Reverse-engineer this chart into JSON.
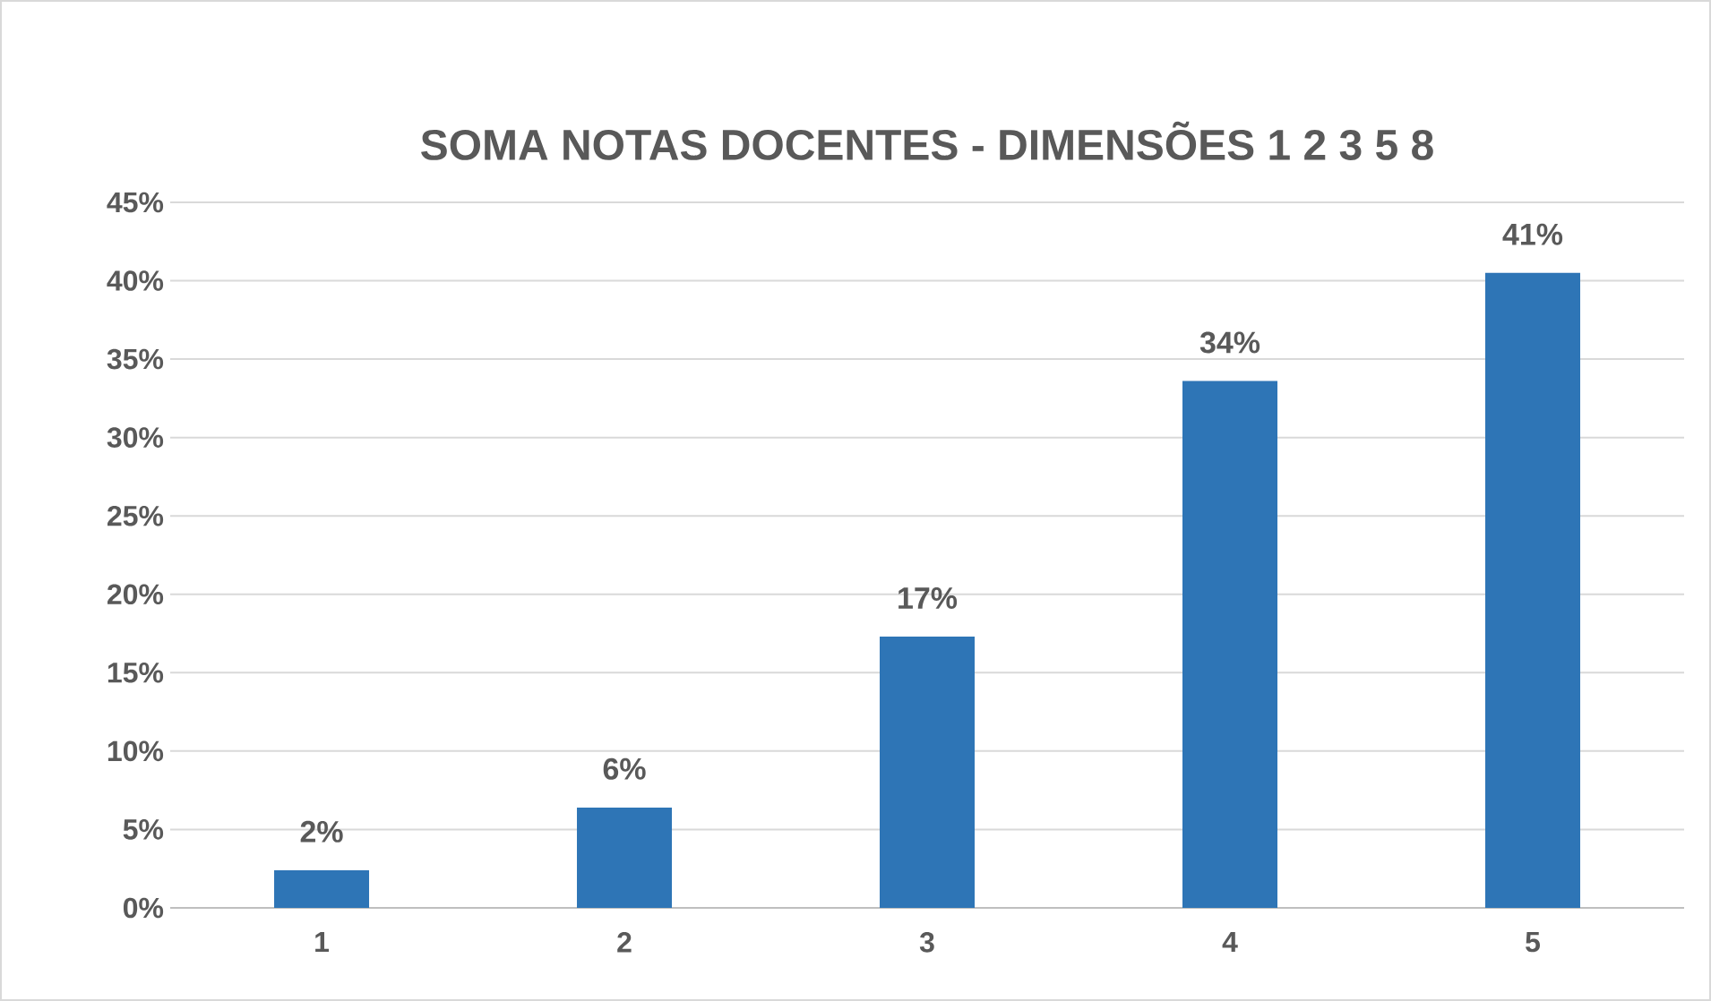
{
  "chart_data": {
    "type": "bar",
    "title": "SOMA NOTAS DOCENTES - DIMENSÕES 1 2 3 5 8",
    "categories": [
      "1",
      "2",
      "3",
      "4",
      "5"
    ],
    "values": [
      2.4,
      6.4,
      17.3,
      33.6,
      40.5
    ],
    "value_labels": [
      "2%",
      "6%",
      "17%",
      "34%",
      "41%"
    ],
    "color": "#2e75b6",
    "ylim": [
      0,
      45
    ],
    "yticks": [
      {
        "value": 0,
        "label": "0%"
      },
      {
        "value": 5,
        "label": "5%"
      },
      {
        "value": 10,
        "label": "10%"
      },
      {
        "value": 15,
        "label": "15%"
      },
      {
        "value": 20,
        "label": "20%"
      },
      {
        "value": 25,
        "label": "25%"
      },
      {
        "value": 30,
        "label": "30%"
      },
      {
        "value": 35,
        "label": "35%"
      },
      {
        "value": 40,
        "label": "40%"
      },
      {
        "value": 45,
        "label": "45%"
      }
    ],
    "grid": "y"
  }
}
